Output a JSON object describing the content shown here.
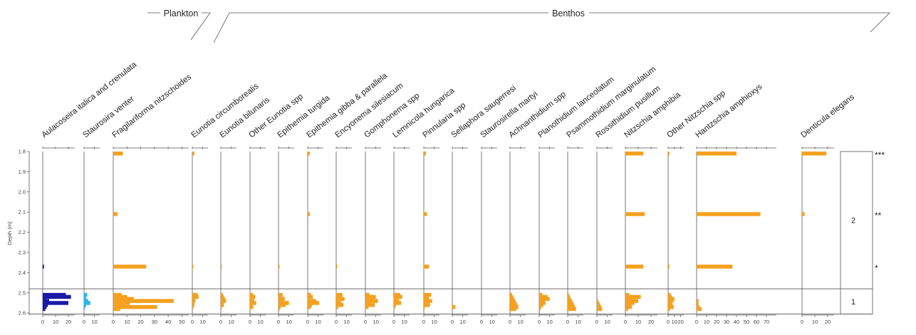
{
  "chart_data": {
    "type": "bar",
    "orientation": "horizontal-stratigraphic",
    "ylabel": "Depth (m)",
    "depth_ticks": [
      "1.8",
      "1.9",
      "2.0",
      "2.1",
      "2.2",
      "2.3",
      "2.4",
      "2.5",
      "2.6"
    ],
    "ylim": [
      1.8,
      2.61
    ],
    "groups": [
      {
        "name": "Plankton",
        "from": 0,
        "to": 2
      },
      {
        "name": "Benthos",
        "from": 3,
        "to": 21
      }
    ],
    "depths": [
      1.81,
      2.11,
      2.37,
      2.51,
      2.52,
      2.53,
      2.54,
      2.55,
      2.56,
      2.57,
      2.58
    ],
    "series": [
      {
        "name": "Aulacoseira italica and crenulata",
        "color": "#1a1aa8",
        "max": 25,
        "ticks": [
          "0",
          "10",
          "20"
        ],
        "values": [
          0,
          0,
          1,
          18,
          22,
          3,
          5,
          20,
          4,
          3,
          2
        ]
      },
      {
        "name": "Staurosira venter",
        "color": "#29b6e8",
        "max": 15,
        "ticks": [
          "0",
          "10"
        ],
        "values": [
          0,
          0,
          0,
          3,
          0,
          2,
          4,
          6,
          2,
          1,
          0
        ]
      },
      {
        "name": "Fragilariforma nitzschoides",
        "color": "#f5a01e",
        "max": 55,
        "ticks": [
          "0",
          "10",
          "20",
          "30",
          "40",
          "50"
        ],
        "values": [
          7,
          3,
          24,
          6,
          10,
          15,
          44,
          12,
          8,
          32,
          5
        ]
      },
      {
        "name": "Eunotia circumborealis",
        "color": "#f5a01e",
        "max": 15,
        "ticks": [
          "0",
          "10"
        ],
        "values": [
          2,
          0,
          1,
          5,
          6,
          2,
          3,
          1,
          2,
          1,
          0
        ]
      },
      {
        "name": "Eunotia bilunaris",
        "color": "#f5a01e",
        "max": 15,
        "ticks": [
          "0",
          "10"
        ],
        "values": [
          0,
          0,
          1,
          2,
          3,
          4,
          5,
          2,
          3,
          1,
          0
        ]
      },
      {
        "name": "Other Eunotia spp",
        "color": "#f5a01e",
        "max": 15,
        "ticks": [
          "0",
          "10"
        ],
        "values": [
          0,
          0,
          0,
          3,
          5,
          2,
          4,
          6,
          2,
          3,
          0
        ]
      },
      {
        "name": "Epithemia turgida",
        "color": "#f5a01e",
        "max": 15,
        "ticks": [
          "0",
          "10"
        ],
        "values": [
          0,
          0,
          1,
          4,
          2,
          6,
          3,
          10,
          7,
          2,
          1
        ]
      },
      {
        "name": "Epithemia gibba & parallela",
        "color": "#f5a01e",
        "max": 15,
        "ticks": [
          "0",
          "10"
        ],
        "values": [
          2,
          2,
          0,
          3,
          5,
          2,
          8,
          11,
          4,
          3,
          0
        ]
      },
      {
        "name": "Encyonema silesiacum",
        "color": "#f5a01e",
        "max": 15,
        "ticks": [
          "0",
          "10"
        ],
        "values": [
          0,
          0,
          1,
          6,
          3,
          8,
          2,
          5,
          7,
          2,
          0
        ]
      },
      {
        "name": "Gomphonema spp",
        "color": "#f5a01e",
        "max": 15,
        "ticks": [
          "0",
          "10"
        ],
        "values": [
          0,
          0,
          0,
          4,
          10,
          7,
          12,
          5,
          9,
          3,
          0
        ]
      },
      {
        "name": "Lemnicola hungarica",
        "color": "#f5a01e",
        "max": 15,
        "ticks": [
          "0",
          "10"
        ],
        "values": [
          0,
          0,
          0,
          6,
          8,
          3,
          5,
          7,
          2,
          1,
          0
        ]
      },
      {
        "name": "Pinnularia spp",
        "color": "#f5a01e",
        "max": 15,
        "ticks": [
          "0",
          "10"
        ],
        "values": [
          2,
          3,
          5,
          7,
          3,
          5,
          8,
          2,
          6,
          1,
          0
        ]
      },
      {
        "name": "Sellaphora saugerresi",
        "color": "#f5a01e",
        "max": 15,
        "ticks": [
          "0",
          "10"
        ],
        "values": [
          0,
          0,
          0,
          0,
          0,
          0,
          0,
          0,
          0,
          3,
          0
        ]
      },
      {
        "name": "Staurosirella martyi",
        "color": "#f5a01e",
        "max": 15,
        "ticks": [
          "0",
          "10"
        ],
        "values": [
          0,
          0,
          0,
          0,
          0,
          0,
          0,
          0,
          0,
          0,
          0
        ]
      },
      {
        "name": "Achnanthidium spp",
        "color": "#f5a01e",
        "max": 15,
        "ticks": [
          "0",
          "10"
        ],
        "values": [
          0,
          0,
          0,
          2,
          3,
          4,
          5,
          6,
          7,
          8,
          6
        ]
      },
      {
        "name": "Planothidium lanceolatum",
        "color": "#f5a01e",
        "max": 15,
        "ticks": [
          "0",
          "10"
        ],
        "values": [
          0,
          0,
          0,
          3,
          8,
          10,
          5,
          6,
          4,
          2,
          1
        ]
      },
      {
        "name": "Psammothidium marginulatum",
        "color": "#f5a01e",
        "max": 15,
        "ticks": [
          "0",
          "10"
        ],
        "values": [
          0,
          0,
          0,
          1,
          2,
          3,
          4,
          5,
          6,
          7,
          8
        ]
      },
      {
        "name": "Rossithidium pusillum",
        "color": "#f5a01e",
        "max": 15,
        "ticks": [
          "0",
          "10"
        ],
        "values": [
          0,
          0,
          0,
          0,
          0,
          0,
          1,
          2,
          3,
          4,
          5
        ]
      },
      {
        "name": "Nitzschia amphibia",
        "color": "#f5a01e",
        "max": 25,
        "ticks": [
          "0",
          "10",
          "20"
        ],
        "values": [
          14,
          15,
          14,
          3,
          12,
          6,
          10,
          7,
          4,
          5,
          2
        ]
      },
      {
        "name": "Other Nitzschia spp",
        "color": "#f5a01e",
        "max": 25,
        "ticks": [
          "0",
          "10",
          "20"
        ],
        "values": [
          2,
          0,
          2,
          4,
          6,
          10,
          8,
          5,
          7,
          9,
          3
        ]
      },
      {
        "name": "Hantzschia amphioxys",
        "color": "#f5a01e",
        "max": 80,
        "ticks": [
          "0",
          "10",
          "20",
          "30",
          "40",
          "50",
          "60",
          "70"
        ],
        "values": [
          40,
          64,
          36,
          0,
          0,
          0,
          2,
          1,
          2,
          3,
          5
        ]
      },
      {
        "name": "Denticula elegans",
        "color": "#f5a01e",
        "max": 25,
        "ticks": [
          "0",
          "10",
          "20"
        ],
        "values": [
          19,
          2,
          0,
          0,
          0,
          0,
          0,
          0,
          0,
          0,
          0
        ]
      }
    ],
    "zones": [
      {
        "label": "2",
        "from": 1.8,
        "to": 2.48
      },
      {
        "label": "1",
        "from": 2.48,
        "to": 2.605
      }
    ],
    "markers": [
      {
        "label": "***",
        "depth": 1.81
      },
      {
        "label": "**",
        "depth": 2.11
      },
      {
        "label": "*",
        "depth": 2.37
      }
    ]
  }
}
